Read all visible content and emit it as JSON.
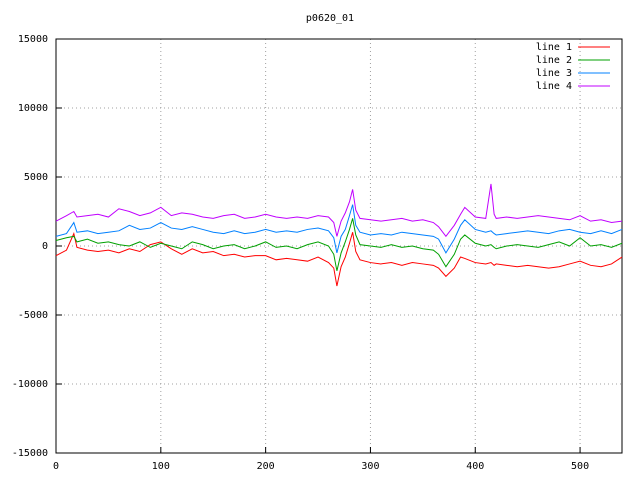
{
  "chart_data": {
    "type": "line",
    "title": "p0620_01",
    "x": [
      0,
      10,
      17,
      20,
      30,
      40,
      50,
      60,
      70,
      80,
      90,
      100,
      110,
      120,
      130,
      140,
      150,
      160,
      170,
      180,
      190,
      200,
      210,
      220,
      230,
      240,
      250,
      260,
      265,
      268,
      272,
      276,
      280,
      283,
      286,
      290,
      300,
      310,
      320,
      330,
      340,
      350,
      360,
      365,
      372,
      380,
      386,
      390,
      400,
      410,
      415,
      418,
      420,
      430,
      440,
      450,
      460,
      470,
      480,
      490,
      500,
      510,
      520,
      530,
      540
    ],
    "series": [
      {
        "name": "line 1",
        "color": "#ff0000",
        "values": [
          -700,
          -300,
          900,
          -100,
          -300,
          -400,
          -300,
          -500,
          -200,
          -400,
          100,
          300,
          -200,
          -600,
          -200,
          -500,
          -400,
          -700,
          -600,
          -800,
          -700,
          -700,
          -1000,
          -900,
          -1000,
          -1100,
          -800,
          -1200,
          -1600,
          -2900,
          -1500,
          -800,
          200,
          1000,
          -400,
          -1000,
          -1200,
          -1300,
          -1200,
          -1400,
          -1200,
          -1300,
          -1400,
          -1600,
          -2200,
          -1600,
          -800,
          -900,
          -1200,
          -1300,
          -1200,
          -1400,
          -1300,
          -1400,
          -1500,
          -1400,
          -1500,
          -1600,
          -1500,
          -1300,
          -1100,
          -1400,
          -1500,
          -1300,
          -800
        ]
      },
      {
        "name": "line 2",
        "color": "#00a000",
        "values": [
          400,
          600,
          700,
          300,
          500,
          200,
          300,
          100,
          0,
          300,
          -100,
          200,
          0,
          -200,
          300,
          100,
          -200,
          0,
          100,
          -200,
          0,
          300,
          -100,
          0,
          -200,
          100,
          300,
          0,
          -600,
          -1800,
          -500,
          300,
          1200,
          2000,
          800,
          100,
          0,
          -100,
          100,
          -100,
          0,
          -200,
          -300,
          -600,
          -1500,
          -600,
          500,
          800,
          200,
          0,
          100,
          -100,
          -200,
          0,
          100,
          0,
          -100,
          100,
          300,
          0,
          600,
          0,
          100,
          -100,
          200
        ]
      },
      {
        "name": "line 3",
        "color": "#0080ff",
        "values": [
          700,
          900,
          1700,
          1000,
          1100,
          900,
          1000,
          1100,
          1500,
          1200,
          1300,
          1700,
          1300,
          1200,
          1400,
          1200,
          1000,
          900,
          1100,
          900,
          1000,
          1200,
          1000,
          1100,
          1000,
          1200,
          1300,
          1100,
          600,
          -500,
          700,
          1200,
          2200,
          3000,
          1500,
          1000,
          800,
          900,
          800,
          1000,
          900,
          800,
          700,
          500,
          -500,
          500,
          1500,
          1900,
          1200,
          1000,
          1100,
          900,
          800,
          900,
          1000,
          1100,
          1000,
          900,
          1100,
          1200,
          1000,
          900,
          1100,
          900,
          1200
        ]
      },
      {
        "name": "line 4",
        "color": "#c000ff",
        "values": [
          1800,
          2200,
          2500,
          2100,
          2200,
          2300,
          2100,
          2700,
          2500,
          2200,
          2400,
          2800,
          2200,
          2400,
          2300,
          2100,
          2000,
          2200,
          2300,
          2000,
          2100,
          2300,
          2100,
          2000,
          2100,
          2000,
          2200,
          2100,
          1700,
          700,
          1800,
          2400,
          3200,
          4100,
          2600,
          2000,
          1900,
          1800,
          1900,
          2000,
          1800,
          1900,
          1700,
          1400,
          700,
          1500,
          2300,
          2800,
          2100,
          2000,
          4500,
          2300,
          2000,
          2100,
          2000,
          2100,
          2200,
          2100,
          2000,
          1900,
          2200,
          1800,
          1900,
          1700,
          1800
        ]
      }
    ],
    "xlim": [
      0,
      540
    ],
    "ylim": [
      -15000,
      15000
    ],
    "xticks": [
      0,
      100,
      200,
      300,
      400,
      500
    ],
    "yticks": [
      -15000,
      -10000,
      -5000,
      0,
      5000,
      10000,
      15000
    ],
    "grid": true,
    "legend": "top-right"
  }
}
